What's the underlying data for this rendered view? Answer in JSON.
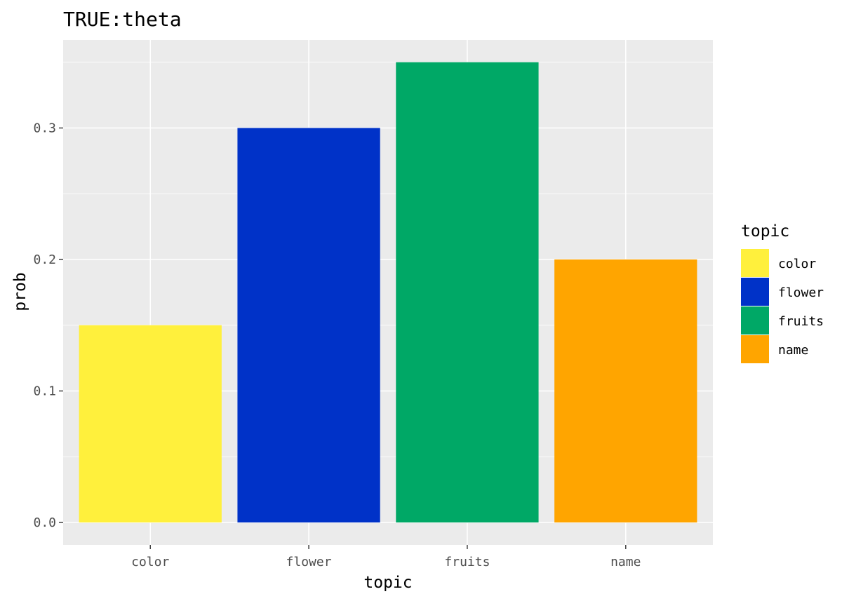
{
  "chart_data": {
    "type": "bar",
    "title": "TRUE:theta",
    "xlabel": "topic",
    "ylabel": "prob",
    "categories": [
      "color",
      "flower",
      "fruits",
      "name"
    ],
    "values": [
      0.15,
      0.3,
      0.35,
      0.2
    ],
    "colors": [
      "#fff03c",
      "#0032c8",
      "#00a866",
      "#ffa500"
    ],
    "ylim": [
      0,
      0.35
    ],
    "yticks": [
      0.0,
      0.1,
      0.2,
      0.3
    ],
    "ytick_labels": [
      "0.0",
      "0.1",
      "0.2",
      "0.3"
    ],
    "grid": true,
    "panel_background": "#ebebeb",
    "legend": {
      "title": "topic",
      "placement": "right",
      "entries": [
        "color",
        "flower",
        "fruits",
        "name"
      ]
    }
  }
}
